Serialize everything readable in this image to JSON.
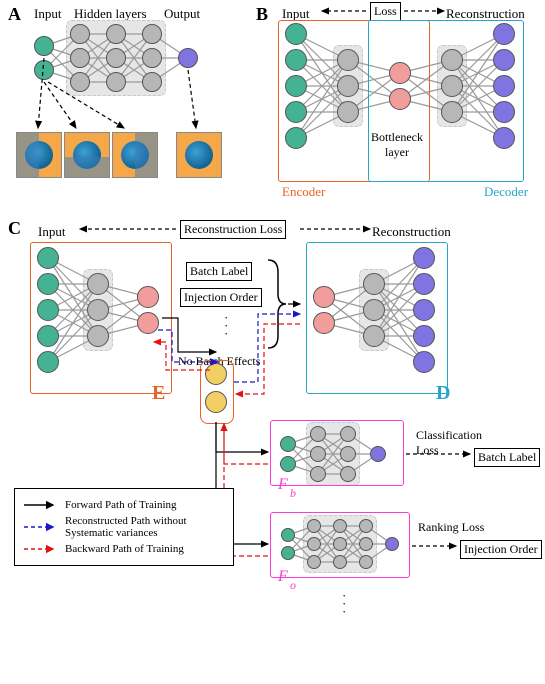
{
  "palette": {
    "green": "#45b393",
    "grey_node": "#b7b7b7",
    "purple": "#8074e0",
    "pink": "#f19d9c",
    "gold": "#f2cf65",
    "orange_frame": "#e9622b",
    "cyan_frame": "#27a7c8",
    "magenta_frame": "#ff3bd4",
    "black": "#000000",
    "blue_dash": "#1818c8",
    "red_dash": "#e11313",
    "hidden_bg": "#e6e6e6"
  },
  "panelA": {
    "tag": "A",
    "labels": {
      "input": "Input",
      "hidden": "Hidden layers",
      "output": "Output"
    },
    "layers": [
      {
        "color_key": "green",
        "count": 2
      },
      {
        "color_key": "grey_node",
        "count": 3
      },
      {
        "color_key": "grey_node",
        "count": 3
      },
      {
        "color_key": "grey_node",
        "count": 3
      },
      {
        "color_key": "purple",
        "count": 1
      }
    ],
    "node_radius": 10,
    "thumbnails": 4
  },
  "panelB": {
    "tag": "B",
    "labels": {
      "input": "Input",
      "loss": "Loss",
      "reconstruction": "Reconstruction",
      "bottleneck": "Bottleneck layer",
      "encoder": "Encoder",
      "decoder": "Decoder"
    },
    "layers": [
      {
        "color_key": "green",
        "count": 5
      },
      {
        "color_key": "grey_node",
        "count": 3
      },
      {
        "color_key": "pink",
        "count": 2
      },
      {
        "color_key": "grey_node",
        "count": 3
      },
      {
        "color_key": "purple",
        "count": 5
      }
    ],
    "node_radius": 11
  },
  "panelC": {
    "tag": "C",
    "labels": {
      "input": "Input",
      "recon_loss": "Reconstruction Loss",
      "reconstruction": "Reconstruction",
      "E": "E",
      "D": "D",
      "batch_label": "Batch Label",
      "injection_order": "Injection Order",
      "no_batch_effects": "No Batch Effects",
      "classification_loss": "Classification Loss",
      "ranking_loss": "Ranking Loss",
      "Fb": "F",
      "Fb_sub": "b",
      "Fo": "F",
      "Fo_sub": "o"
    },
    "encoder": {
      "layers": [
        {
          "color_key": "green",
          "count": 5
        },
        {
          "color_key": "grey_node",
          "count": 3
        },
        {
          "color_key": "pink",
          "count": 2
        }
      ],
      "node_radius": 11
    },
    "decoder": {
      "layers": [
        {
          "color_key": "pink",
          "count": 2
        },
        {
          "color_key": "grey_node",
          "count": 3
        },
        {
          "color_key": "purple",
          "count": 5
        }
      ],
      "node_radius": 11
    },
    "fb": {
      "layers": [
        {
          "color_key": "green",
          "count": 2
        },
        {
          "color_key": "grey_node",
          "count": 3
        },
        {
          "color_key": "grey_node",
          "count": 3
        },
        {
          "color_key": "purple",
          "count": 1
        }
      ],
      "node_radius": 8
    },
    "fo": {
      "layers": [
        {
          "color_key": "green",
          "count": 2
        },
        {
          "color_key": "grey_node",
          "count": 3
        },
        {
          "color_key": "grey_node",
          "count": 3
        },
        {
          "color_key": "grey_node",
          "count": 3
        },
        {
          "color_key": "purple",
          "count": 1
        }
      ],
      "node_radius": 7
    },
    "no_batch_nodes": {
      "color_key": "gold",
      "count": 2,
      "radius": 11
    }
  },
  "legend": {
    "items": [
      {
        "style": "solid_black",
        "text": "Forward Path of Training"
      },
      {
        "style": "dash_blue",
        "text": "Reconstructed Path without Systematic variances"
      },
      {
        "style": "dash_red",
        "text": "Backward Path of Training"
      }
    ]
  }
}
